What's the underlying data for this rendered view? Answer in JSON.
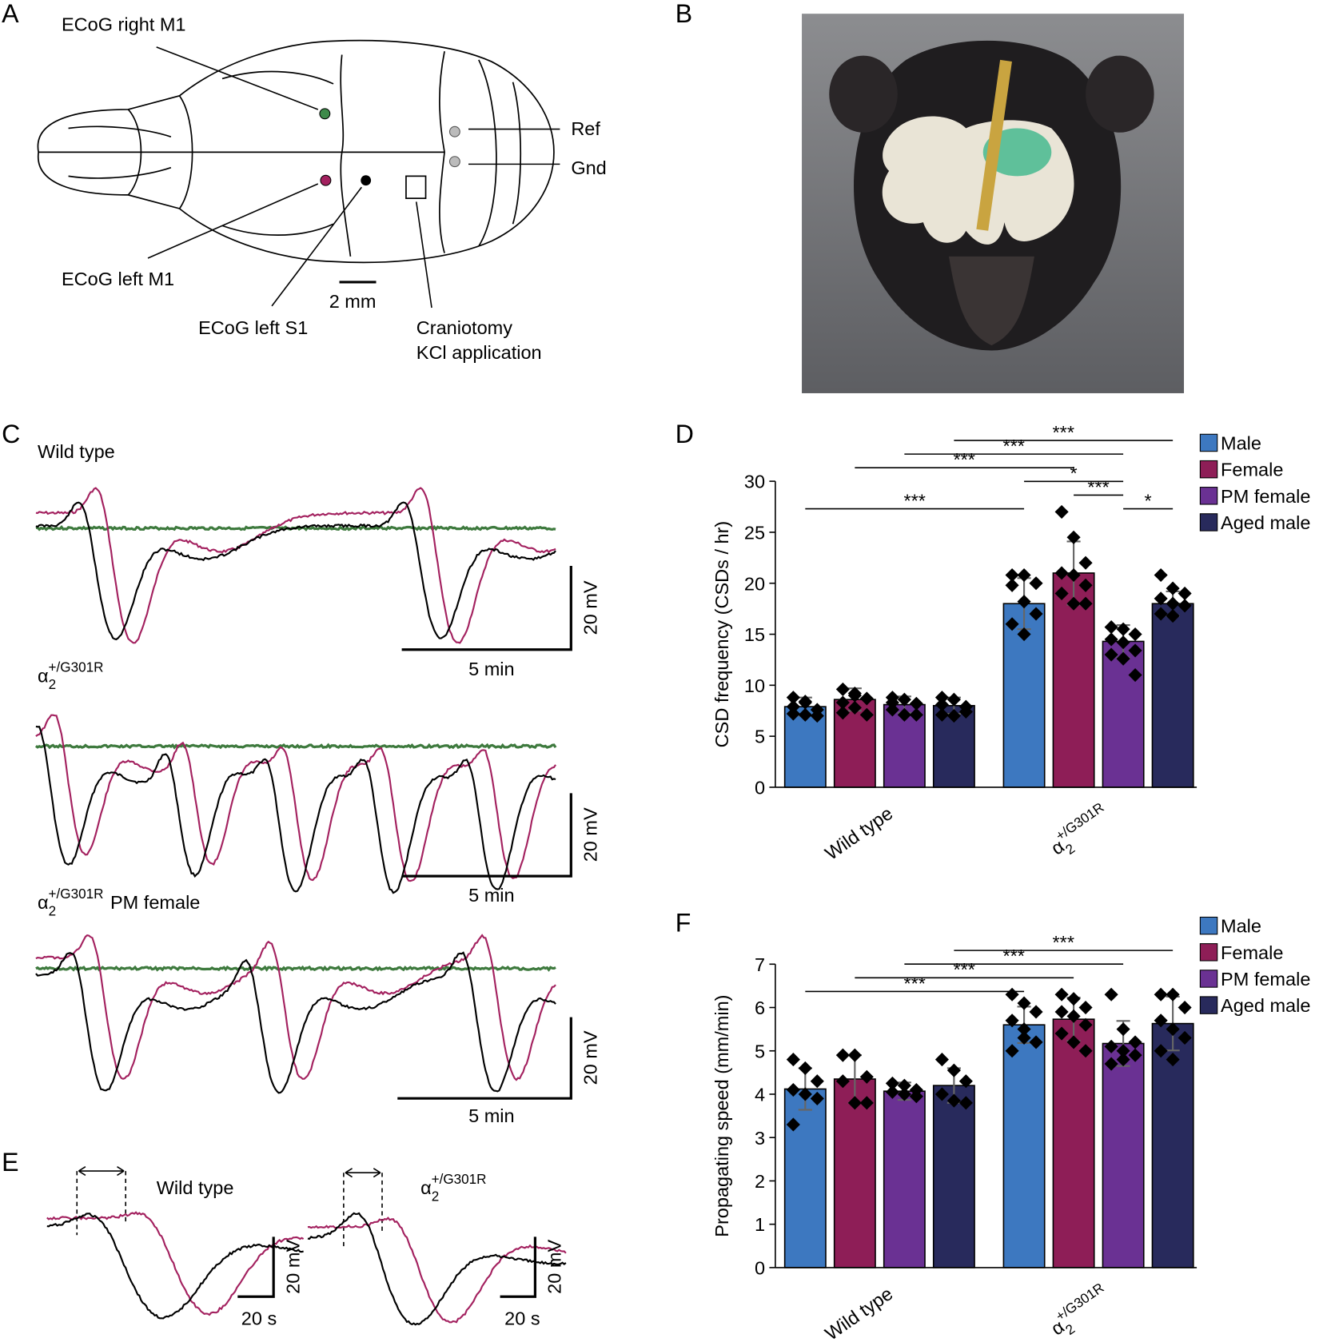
{
  "panels": {
    "a": "A",
    "b": "B",
    "c": "C",
    "d": "D",
    "e": "E",
    "f": "F"
  },
  "skull": {
    "right_m1": "ECoG right M1",
    "ref": "Ref",
    "gnd": "Gnd",
    "left_m1": "ECoG left M1",
    "scale": "2 mm",
    "left_s1": "ECoG left S1",
    "craniotomy": [
      "Craniotomy",
      "KCl application"
    ]
  },
  "traces": {
    "wild_type": "Wild type",
    "mutant": {
      "base": "α",
      "sub": "2",
      "sup": "+/G301R"
    },
    "pm_female": {
      "base": "α",
      "sub": "2",
      "sup": "+/G301R",
      "suffix": "PM female"
    },
    "voltage_bars": [
      "20 mV",
      "20 mV",
      "20 mV"
    ],
    "time_bars": [
      "5 min",
      "5 min",
      "5 min"
    ]
  },
  "csd_shape": {
    "wild_type": "Wild type",
    "mutant": {
      "base": "α",
      "sub": "2",
      "sup": "+/G301R"
    },
    "voltage_bars": [
      "20 mV",
      "20 mV"
    ],
    "time_bars": [
      "20 s",
      "20 s"
    ]
  },
  "chart_data": [
    {
      "type": "bar",
      "ylabel": "CSD frequency (CSDs / hr)",
      "categories": [
        "Wild type",
        {
          "base": "α",
          "sub": "2",
          "sup": "+/G301R"
        }
      ],
      "ylim": [
        0,
        30
      ],
      "yticks": [
        0,
        5,
        10,
        15,
        20,
        25,
        30
      ],
      "legend": "right",
      "series": [
        {
          "name": "Male",
          "color": "#3d78c0",
          "values": [
            7.9,
            18.0
          ],
          "errors": [
            0.9,
            2.5
          ],
          "points": [
            [
              8.8,
              8.3,
              7.6,
              7.2,
              7.1,
              7.0,
              7.9,
              8.4
            ],
            [
              20.8,
              20.8,
              20.0,
              19.8,
              18.2,
              17.0,
              16.0,
              15.0
            ]
          ]
        },
        {
          "name": "Female",
          "color": "#8e1e57",
          "values": [
            8.6,
            21.0
          ],
          "errors": [
            1.1,
            3.1
          ],
          "points": [
            [
              9.6,
              9.2,
              8.7,
              8.3,
              7.8,
              7.1,
              7.3,
              9.0
            ],
            [
              27.0,
              24.5,
              22.0,
              21.0,
              20.8,
              19.8,
              19.0,
              18.0,
              18.0
            ]
          ]
        },
        {
          "name": "PM female",
          "color": "#6a3193",
          "values": [
            8.1,
            14.3
          ],
          "errors": [
            0.8,
            1.6
          ],
          "points": [
            [
              8.8,
              8.6,
              8.2,
              7.6,
              7.1,
              7.1,
              8.3
            ],
            [
              15.7,
              15.5,
              15.0,
              14.5,
              14.2,
              13.4,
              13.0,
              12.6,
              11.0
            ]
          ]
        },
        {
          "name": "Aged male",
          "color": "#282a5c",
          "values": [
            8.0,
            18.0
          ],
          "errors": [
            0.8,
            1.2
          ],
          "points": [
            [
              8.8,
              8.6,
              7.9,
              7.1,
              7.0,
              7.4,
              8.1
            ],
            [
              20.8,
              19.5,
              19.0,
              18.5,
              18.0,
              17.8,
              17.0,
              16.8
            ]
          ]
        }
      ],
      "significance": [
        {
          "between": [
            [
              1,
              2
            ],
            [
              1,
              3
            ]
          ],
          "label": "*"
        },
        {
          "between": [
            [
              0,
              0
            ],
            [
              1,
              0
            ]
          ],
          "label": "***"
        },
        {
          "between": [
            [
              1,
              1
            ],
            [
              1,
              2
            ]
          ],
          "label": "***"
        },
        {
          "between": [
            [
              1,
              0
            ],
            [
              1,
              2
            ]
          ],
          "label": "*"
        },
        {
          "between": [
            [
              0,
              1
            ],
            [
              1,
              1
            ]
          ],
          "label": "***"
        },
        {
          "between": [
            [
              0,
              2
            ],
            [
              1,
              2
            ]
          ],
          "label": "***"
        },
        {
          "between": [
            [
              0,
              3
            ],
            [
              1,
              3
            ]
          ],
          "label": "***"
        }
      ]
    },
    {
      "type": "bar",
      "ylabel": "Propagating speed (mm/min)",
      "categories": [
        "Wild type",
        {
          "base": "α",
          "sub": "2",
          "sup": "+/G301R"
        }
      ],
      "ylim": [
        0,
        7
      ],
      "yticks": [
        0,
        1,
        2,
        3,
        4,
        5,
        6,
        7
      ],
      "legend": "right",
      "series": [
        {
          "name": "Male",
          "color": "#3d78c0",
          "values": [
            4.12,
            5.6
          ],
          "errors": [
            0.48,
            0.42
          ],
          "points": [
            [
              4.8,
              4.6,
              4.3,
              4.1,
              4.0,
              3.9,
              3.3
            ],
            [
              6.3,
              6.1,
              5.9,
              5.7,
              5.5,
              5.2,
              5.0,
              5.3
            ]
          ]
        },
        {
          "name": "Female",
          "color": "#8e1e57",
          "values": [
            4.35,
            5.73
          ],
          "errors": [
            0.55,
            0.5
          ],
          "points": [
            [
              4.9,
              4.9,
              4.4,
              4.3,
              3.8,
              3.8
            ],
            [
              6.3,
              6.2,
              6.0,
              5.9,
              5.8,
              5.6,
              5.4,
              5.2,
              5.0
            ]
          ]
        },
        {
          "name": "PM female",
          "color": "#6a3193",
          "values": [
            4.07,
            5.17
          ],
          "errors": [
            0.2,
            0.52
          ],
          "points": [
            [
              4.25,
              4.2,
              4.1,
              4.05,
              4.0,
              3.95
            ],
            [
              6.3,
              5.5,
              5.2,
              5.1,
              5.0,
              4.9,
              4.7,
              4.8
            ]
          ]
        },
        {
          "name": "Aged male",
          "color": "#282a5c",
          "values": [
            4.2,
            5.63
          ],
          "errors": [
            0.4,
            0.62
          ],
          "points": [
            [
              4.8,
              4.55,
              4.3,
              4.0,
              3.85,
              3.8
            ],
            [
              6.3,
              6.3,
              6.0,
              5.7,
              5.5,
              5.3,
              5.0,
              4.8
            ]
          ]
        }
      ],
      "significance": [
        {
          "between": [
            [
              0,
              0
            ],
            [
              1,
              0
            ]
          ],
          "label": "***"
        },
        {
          "between": [
            [
              0,
              1
            ],
            [
              1,
              1
            ]
          ],
          "label": "***"
        },
        {
          "between": [
            [
              0,
              2
            ],
            [
              1,
              2
            ]
          ],
          "label": "***"
        },
        {
          "between": [
            [
              0,
              3
            ],
            [
              1,
              3
            ]
          ],
          "label": "***"
        }
      ]
    }
  ]
}
